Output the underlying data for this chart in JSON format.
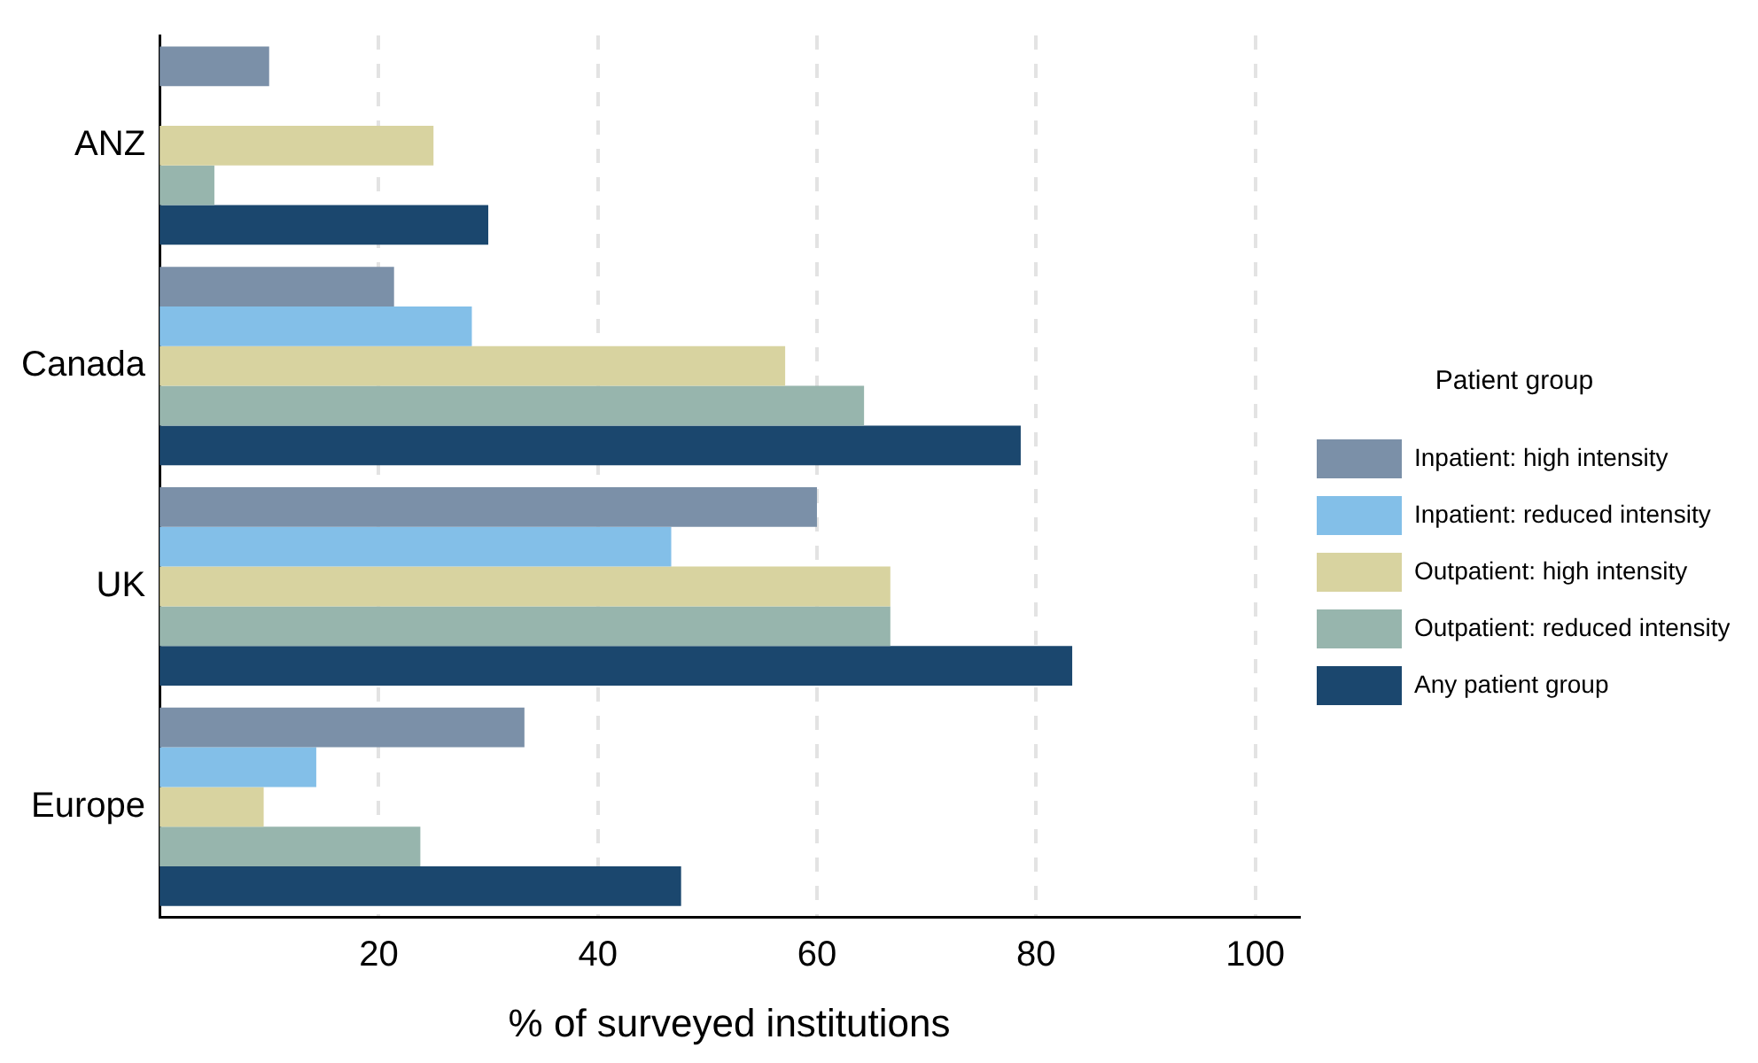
{
  "chart_data": {
    "type": "bar",
    "orientation": "horizontal",
    "xlabel": "% of surveyed institutions",
    "legend_title": "Patient group",
    "legend": "right",
    "grid": "x",
    "categories": [
      "ANZ",
      "Canada",
      "UK",
      "Europe"
    ],
    "xlim": [
      0,
      104
    ],
    "xticks": [
      20,
      40,
      60,
      80,
      100
    ],
    "series": [
      {
        "name": "Inpatient: high intensity",
        "color": "#7b90a8",
        "values": [
          10,
          21.4,
          60,
          33.3
        ]
      },
      {
        "name": "Inpatient: reduced intensity",
        "color": "#83bfe8",
        "values": [
          0,
          28.5,
          46.7,
          14.3
        ]
      },
      {
        "name": "Outpatient: high intensity",
        "color": "#d8d3a0",
        "values": [
          25,
          57.1,
          66.7,
          9.5
        ]
      },
      {
        "name": "Outpatient: reduced intensity",
        "color": "#97b5ad",
        "values": [
          5,
          64.3,
          66.7,
          23.8
        ]
      },
      {
        "name": "Any patient group",
        "color": "#1b476e",
        "values": [
          30,
          78.6,
          83.3,
          47.6
        ]
      }
    ]
  }
}
